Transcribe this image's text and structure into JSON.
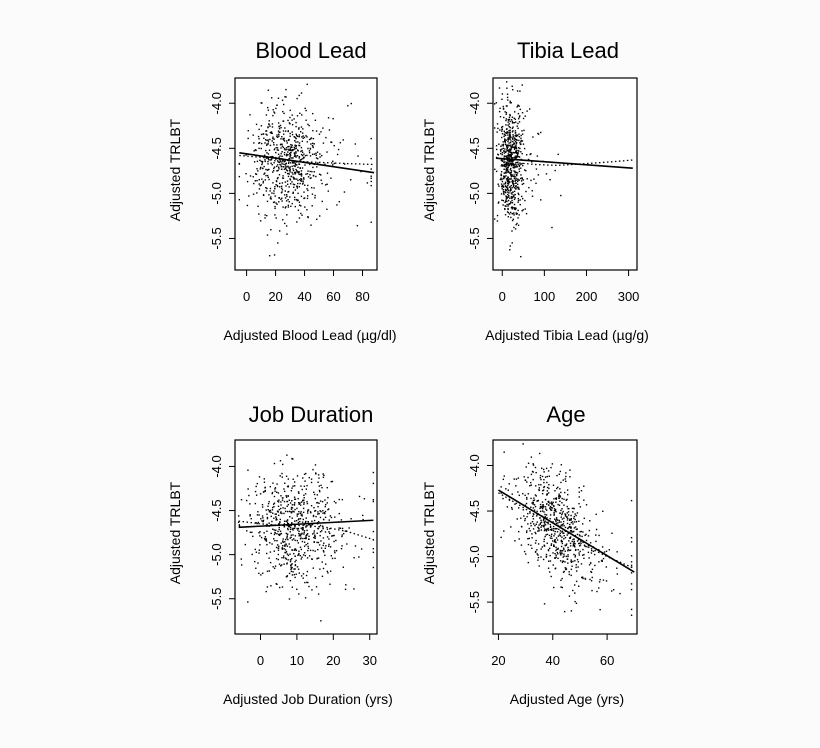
{
  "chart_data": [
    {
      "type": "scatter",
      "title": "Blood Lead",
      "xlabel": "Adjusted Blood Lead (µg/dl)",
      "ylabel": "Adjusted TRLBT",
      "xlim": [
        -8,
        90
      ],
      "ylim": [
        -5.85,
        -3.72
      ],
      "xticks": [
        "0",
        "20",
        "40",
        "60",
        "80"
      ],
      "xtick_values": [
        0,
        20,
        40,
        60,
        80
      ],
      "yticks": [
        "-4.0",
        "-4.5",
        "-5.0",
        "-5.5"
      ],
      "ytick_values": [
        -4.0,
        -4.5,
        -5.0,
        -5.5
      ],
      "cloud": {
        "n": 700,
        "x_center": 28,
        "x_spread": 13,
        "x_min": -5,
        "x_max": 86,
        "y_spread": 0.32
      },
      "linear_fit": {
        "x": [
          -5,
          88
        ],
        "y": [
          -4.55,
          -4.77
        ]
      },
      "smooth_fit": {
        "x": [
          -5,
          10,
          25,
          40,
          55,
          70,
          88
        ],
        "y": [
          -4.58,
          -4.6,
          -4.63,
          -4.65,
          -4.66,
          -4.67,
          -4.68
        ]
      }
    },
    {
      "type": "scatter",
      "title": "Tibia Lead",
      "xlabel": "Adjusted Tibia Lead (µg/g)",
      "ylabel": "Adjusted TRLBT",
      "xlim": [
        -22,
        320
      ],
      "ylim": [
        -5.85,
        -3.72
      ],
      "xticks": [
        "0",
        "100",
        "200",
        "300"
      ],
      "xtick_values": [
        0,
        100,
        200,
        300
      ],
      "yticks": [
        "-4.0",
        "-4.5",
        "-5.0",
        "-5.5"
      ],
      "ytick_values": [
        -4.0,
        -4.5,
        -5.0,
        -5.5
      ],
      "cloud": {
        "n": 700,
        "x_center": 20,
        "x_spread": 14,
        "x_min": -18,
        "x_max": 310,
        "y_spread": 0.32
      },
      "linear_fit": {
        "x": [
          -15,
          310
        ],
        "y": [
          -4.61,
          -4.72
        ]
      },
      "smooth_fit": {
        "x": [
          -15,
          30,
          80,
          130,
          200,
          260,
          310
        ],
        "y": [
          -4.6,
          -4.66,
          -4.68,
          -4.69,
          -4.67,
          -4.65,
          -4.63
        ]
      }
    },
    {
      "type": "scatter",
      "title": "Job Duration",
      "xlabel": "Adjusted Job Duration (yrs)",
      "ylabel": "Adjusted TRLBT",
      "xlim": [
        -7,
        32
      ],
      "ylim": [
        -5.9,
        -3.7
      ],
      "xticks": [
        "0",
        "10",
        "20",
        "30"
      ],
      "xtick_values": [
        0,
        10,
        20,
        30
      ],
      "yticks": [
        "-4.0",
        "-4.5",
        "-5.0",
        "-5.5"
      ],
      "ytick_values": [
        -4.0,
        -4.5,
        -5.0,
        -5.5
      ],
      "cloud": {
        "n": 700,
        "x_center": 9,
        "x_spread": 6,
        "x_min": -6,
        "x_max": 31,
        "y_spread": 0.33
      },
      "linear_fit": {
        "x": [
          -6,
          31
        ],
        "y": [
          -4.69,
          -4.61
        ]
      },
      "smooth_fit": {
        "x": [
          -6,
          0,
          6,
          12,
          18,
          24,
          31
        ],
        "y": [
          -4.62,
          -4.65,
          -4.67,
          -4.67,
          -4.69,
          -4.74,
          -4.83
        ]
      }
    },
    {
      "type": "scatter",
      "title": "Age",
      "xlabel": "Adjusted Age (yrs)",
      "ylabel": "Adjusted TRLBT",
      "xlim": [
        18,
        71
      ],
      "ylim": [
        -5.85,
        -3.72
      ],
      "xticks": [
        "20",
        "40",
        "60"
      ],
      "xtick_values": [
        20,
        40,
        60
      ],
      "yticks": [
        "-4.0",
        "-4.5",
        "-5.0",
        "-5.5"
      ],
      "ytick_values": [
        -4.0,
        -4.5,
        -5.0,
        -5.5
      ],
      "cloud": {
        "n": 700,
        "x_center": 41,
        "x_spread": 8,
        "x_min": 21,
        "x_max": 69,
        "y_spread": 0.3
      },
      "linear_fit": {
        "x": [
          20,
          70
        ],
        "y": [
          -4.27,
          -5.17
        ]
      },
      "smooth_fit": {
        "x": [
          20,
          28,
          36,
          44,
          52,
          60,
          70
        ],
        "y": [
          -4.3,
          -4.44,
          -4.59,
          -4.74,
          -4.88,
          -5.0,
          -5.13
        ]
      }
    }
  ]
}
